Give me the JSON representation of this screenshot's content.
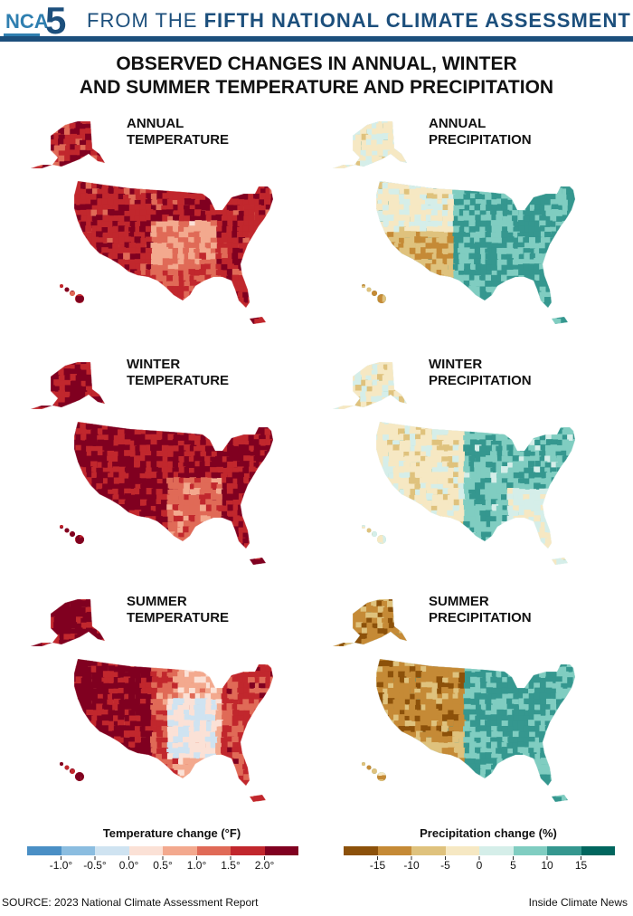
{
  "header": {
    "logo_text": "NCA",
    "logo_number": "5",
    "lead": "FROM THE ",
    "emphasis": "FIFTH NATIONAL CLIMATE ASSESSMENT"
  },
  "title_line1": "OBSERVED CHANGES IN ANNUAL, WINTER",
  "title_line2": "AND SUMMER TEMPERATURE AND PRECIPITATION",
  "panels": [
    {
      "label": "ANNUAL\nTEMPERATURE",
      "palette": "temperature",
      "pattern": "annual-temp"
    },
    {
      "label": "ANNUAL\nPRECIPITATION",
      "palette": "precipitation",
      "pattern": "annual-precip"
    },
    {
      "label": "WINTER\nTEMPERATURE",
      "palette": "temperature",
      "pattern": "winter-temp"
    },
    {
      "label": "WINTER\nPRECIPITATION",
      "palette": "precipitation",
      "pattern": "winter-precip"
    },
    {
      "label": "SUMMER\nTEMPERATURE",
      "palette": "temperature",
      "pattern": "summer-temp"
    },
    {
      "label": "SUMMER\nPRECIPITATION",
      "palette": "precipitation",
      "pattern": "summer-precip"
    }
  ],
  "legend_temperature": {
    "title": "Temperature change (°F)",
    "colors": [
      "#4a8fc5",
      "#8bbde0",
      "#cfe3f1",
      "#fbe1d6",
      "#f3a98e",
      "#e06a57",
      "#c1272d",
      "#800020"
    ],
    "labels": [
      "-1.0°",
      "-0.5°",
      "0.0°",
      "0.5°",
      "1.0°",
      "1.5°",
      "2.0°"
    ]
  },
  "legend_precipitation": {
    "title": "Precipitation change (%)",
    "colors": [
      "#8c510a",
      "#c58a36",
      "#dfc27d",
      "#f6e8c3",
      "#d5eee9",
      "#80cdc1",
      "#35978f",
      "#01665e"
    ],
    "labels": [
      "-15",
      "-10",
      "-5",
      "0",
      "5",
      "10",
      "15"
    ]
  },
  "footer": {
    "source": "SOURCE: 2023 National Climate Assessment Report",
    "brand": "Inside Climate News"
  }
}
